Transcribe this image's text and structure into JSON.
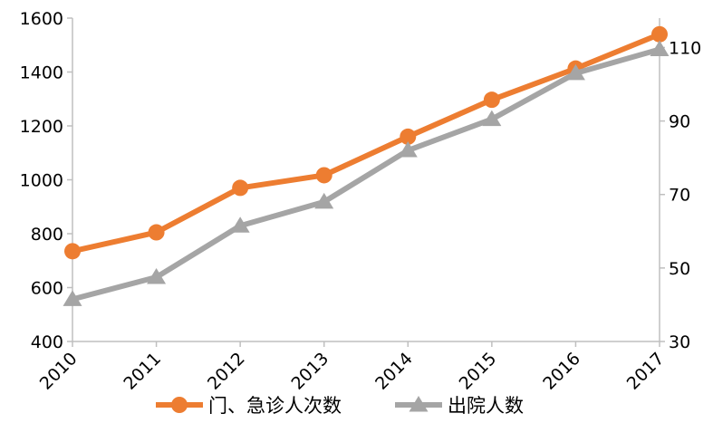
{
  "chart_data": {
    "type": "line",
    "title": "",
    "xlabel": "",
    "ylabel": "",
    "y2label": "",
    "categories": [
      "2010",
      "2011",
      "2012",
      "2013",
      "2014",
      "2015",
      "2016",
      "2017"
    ],
    "ylim": [
      400,
      1600
    ],
    "yticks": [
      400,
      600,
      800,
      1000,
      1200,
      1400,
      1600
    ],
    "y2lim": [
      30,
      118
    ],
    "y2ticks": [
      30,
      50,
      70,
      90,
      110
    ],
    "grid": false,
    "legend_position": "bottom",
    "series": [
      {
        "name": "门、急诊人次数",
        "axis": "left",
        "marker": "circle",
        "color": "#ED7D31",
        "values": [
          735,
          805,
          970,
          1017,
          1160,
          1297,
          1413,
          1540
        ]
      },
      {
        "name": "出院人数",
        "axis": "right",
        "marker": "triangle",
        "color": "#A5A5A5",
        "values": [
          41.5,
          47.5,
          61.5,
          68,
          82,
          90.5,
          103,
          109.5
        ]
      }
    ]
  }
}
